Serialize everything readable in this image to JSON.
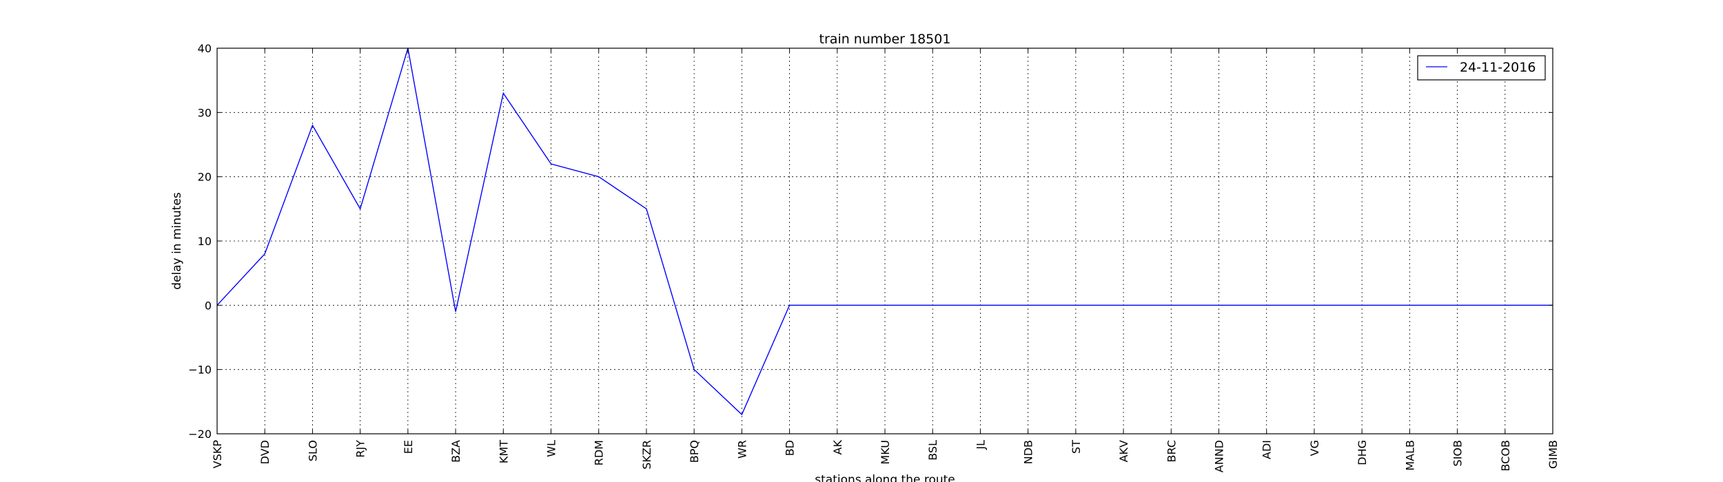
{
  "chart_data": {
    "type": "line",
    "title": "train number 18501",
    "xlabel": "stations along the route",
    "ylabel": "delay in minutes",
    "categories": [
      "VSKP",
      "DVD",
      "SLO",
      "RJY",
      "EE",
      "BZA",
      "KMT",
      "WL",
      "RDM",
      "SKZR",
      "BPQ",
      "WR",
      "BD",
      "AK",
      "MKU",
      "BSL",
      "JL",
      "NDB",
      "ST",
      "AKV",
      "BRC",
      "ANND",
      "ADI",
      "VG",
      "DHG",
      "MALB",
      "SIOB",
      "BCOB",
      "GIMB"
    ],
    "series": [
      {
        "name": "24-11-2016",
        "color": "#0000ff",
        "values": [
          0,
          8,
          28,
          15,
          40,
          -1,
          33,
          22,
          20,
          15,
          -10,
          -17,
          0,
          0,
          0,
          0,
          0,
          0,
          0,
          0,
          0,
          0,
          0,
          0,
          0,
          0,
          0,
          0,
          0
        ]
      }
    ],
    "ylim": [
      -20,
      40
    ],
    "yticks": [
      -20,
      -10,
      0,
      10,
      20,
      30,
      40
    ],
    "ytick_labels": [
      "−20",
      "−10",
      "0",
      "10",
      "20",
      "30",
      "40"
    ],
    "grid": true,
    "legend_position": "top-right"
  }
}
